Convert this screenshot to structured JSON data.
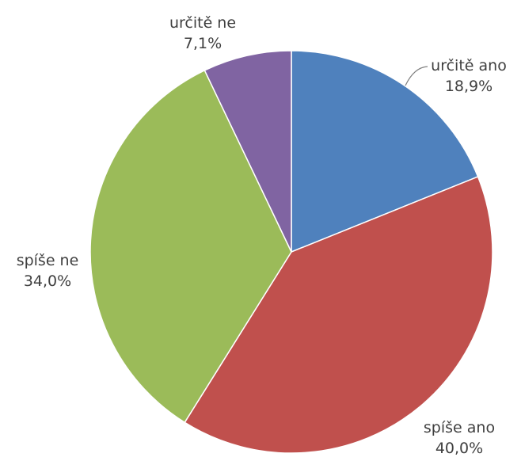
{
  "chart_data": {
    "type": "pie",
    "start_angle_deg": 0,
    "direction": "clockwise",
    "slices": [
      {
        "label": "určitě ano",
        "value": 18.9,
        "value_label": "18,9%",
        "color": "#4f81bd"
      },
      {
        "label": "spíše ano",
        "value": 40.0,
        "value_label": "40,0%",
        "color": "#c0504d"
      },
      {
        "label": "spíše ne",
        "value": 34.0,
        "value_label": "34,0%",
        "color": "#9bbb59"
      },
      {
        "label": "určitě ne",
        "value": 7.1,
        "value_label": "7,1%",
        "color": "#8064a2"
      }
    ],
    "legend": "none",
    "title": ""
  }
}
